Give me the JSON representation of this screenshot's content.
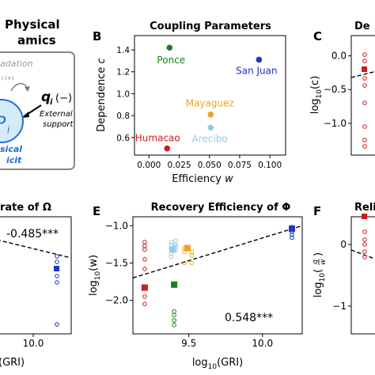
{
  "panelA": {
    "title_partial": "Physical",
    "title_partial_2": "amics",
    "label_gradation": "adation",
    "label_q": "q",
    "label_q_sub": "i",
    "label_q_sign": "(−)",
    "label_external": "External",
    "label_support": "support",
    "label_p": "P",
    "label_p_sub": "i",
    "label_phys": "sical",
    "label_deficit": "icit",
    "label_small": "i (+)"
  },
  "panel_letters": {
    "B": "B",
    "C": "C",
    "E": "E",
    "F": "F"
  },
  "colors": {
    "Ponce": "#1a7f1a",
    "San Juan": "#1f35c8",
    "Mayaguez": "#f0a21c",
    "Arecibo": "#8ecde6",
    "Humacao": "#d21a1a",
    "panelA_blue": "#1f6fd1",
    "box_border": "#888888"
  },
  "chart_data": [
    {
      "id": "B",
      "type": "scatter",
      "title": "Coupling Parameters",
      "xlabel": "Efficiency",
      "xlabel_var": "w",
      "ylabel": "Dependence",
      "ylabel_var": "c",
      "xlim": [
        -0.012,
        0.113
      ],
      "ylim": [
        0.44,
        1.53
      ],
      "xticks": [
        0.0,
        0.025,
        0.05,
        0.075,
        0.1
      ],
      "xtick_labels": [
        "0.000",
        "0.025",
        "0.050",
        "0.075",
        "0.100"
      ],
      "yticks": [
        0.6,
        0.8,
        1.0,
        1.2,
        1.4
      ],
      "ytick_labels": [
        "0.6",
        "0.8",
        "1.0",
        "1.2",
        "1.4"
      ],
      "points": [
        {
          "name": "Ponce",
          "x": 0.017,
          "y": 1.42
        },
        {
          "name": "San Juan",
          "x": 0.091,
          "y": 1.31
        },
        {
          "name": "Mayaguez",
          "x": 0.051,
          "y": 0.81
        },
        {
          "name": "Arecibo",
          "x": 0.051,
          "y": 0.69
        },
        {
          "name": "Humacao",
          "x": 0.015,
          "y": 0.5
        }
      ]
    },
    {
      "id": "C",
      "type": "scatter",
      "title_partial": "De",
      "ylabel": "log",
      "ylabel_sub": "10",
      "ylabel_arg": "(c)",
      "ylim": [
        -1.47,
        0.3
      ],
      "yticks": [
        0.0,
        -0.5,
        -1.0
      ],
      "ytick_labels": [
        "0.0",
        "−0.5",
        "−1.0"
      ]
    },
    {
      "id": "D",
      "type": "scatter",
      "title_partial": "rate of Ω",
      "annotation": "-0.485***",
      "xtick_labels": [
        "10.0"
      ],
      "xlabel_partial": "(GRI)"
    },
    {
      "id": "E",
      "type": "scatter",
      "title": "Recovery Efficiency of Φ",
      "xlabel": "log",
      "xlabel_sub": "10",
      "xlabel_arg": "(GRI)",
      "ylabel": "log",
      "ylabel_sub": "10",
      "ylabel_arg": "(w)",
      "xlim": [
        9.12,
        10.27
      ],
      "ylim": [
        -2.45,
        -0.88
      ],
      "xticks": [
        9.5,
        10.0
      ],
      "xtick_labels": [
        "9.5",
        "10.0"
      ],
      "yticks": [
        -1.0,
        -1.5,
        -2.0
      ],
      "ytick_labels": [
        "−1.0",
        "−1.5",
        "−2.0"
      ],
      "annotation": "0.548***",
      "fit_line": {
        "x": [
          9.12,
          10.27
        ],
        "y": [
          -1.7,
          -1.0
        ]
      },
      "means": [
        {
          "name": "Humacao",
          "x": 9.2,
          "y": -1.83
        },
        {
          "name": "Ponce",
          "x": 9.4,
          "y": -1.79
        },
        {
          "name": "Arecibo",
          "x": 9.39,
          "y": -1.32
        },
        {
          "name": "Mayaguez",
          "x": 9.49,
          "y": -1.3
        },
        {
          "name": "San Juan",
          "x": 10.2,
          "y": -1.04
        }
      ],
      "samples": [
        {
          "name": "Humacao",
          "x": 9.2,
          "values": [
            -1.22,
            -1.27,
            -1.32,
            -1.45,
            -1.58,
            -1.95,
            -2.05
          ]
        },
        {
          "name": "Ponce",
          "x": 9.4,
          "values": [
            -2.15,
            -2.2,
            -2.27,
            -2.33
          ]
        },
        {
          "name": "Arecibo",
          "x": 9.38,
          "values": [
            -1.22,
            -1.26,
            -1.3,
            -1.37,
            -1.42
          ]
        },
        {
          "name": "Arecibo",
          "x": 9.41,
          "values": [
            -1.2,
            -1.25,
            -1.28,
            -1.33
          ]
        },
        {
          "name": "Mayaguez",
          "x": 9.47,
          "values": [
            -1.3,
            -1.35,
            -1.5
          ]
        },
        {
          "name": "Mayaguez",
          "x": 9.52,
          "values": [
            -1.35,
            -1.4,
            -1.5
          ]
        },
        {
          "name": "San Juan",
          "x": 10.2,
          "values": [
            -1.02,
            -1.05,
            -1.08,
            -1.12,
            -1.16
          ]
        }
      ]
    },
    {
      "id": "F",
      "type": "scatter",
      "title_partial": "Reli",
      "ylabel": "log",
      "ylabel_sub": "10",
      "ylabel_arg_num": "q",
      "ylabel_arg_den": "w",
      "ylim": [
        -1.45,
        0.45
      ],
      "yticks": [
        0,
        -1
      ],
      "ytick_labels": [
        "0",
        "−1"
      ]
    }
  ]
}
